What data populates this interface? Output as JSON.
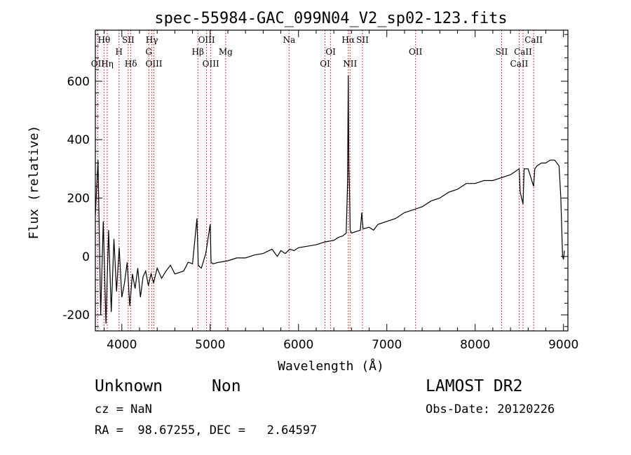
{
  "chart_data": {
    "type": "line",
    "title": "spec-55984-GAC_099N04_V2_sp02-123.fits",
    "xlabel": "Wavelength (Å)",
    "ylabel": "Flux (relative)",
    "xlim": [
      3700,
      9050
    ],
    "ylim": [
      -255,
      775
    ],
    "x_ticks": [
      4000,
      5000,
      6000,
      7000,
      8000,
      9000
    ],
    "y_ticks": [
      -200,
      0,
      200,
      400,
      600
    ],
    "grid": false,
    "line_color": "#000000",
    "marker_color": "#cc0000",
    "spectral_lines": [
      {
        "label": "OII",
        "wavelength": 3727,
        "row": 3
      },
      {
        "label": "Hθ",
        "wavelength": 3798,
        "row": 1
      },
      {
        "label": "Hη",
        "wavelength": 3835,
        "row": 3
      },
      {
        "label": "SII",
        "wavelength": 4072,
        "row": 1
      },
      {
        "label": "H",
        "wavelength": 3968,
        "row": 2
      },
      {
        "label": "Hδ",
        "wavelength": 4102,
        "row": 3
      },
      {
        "label": "Hγ",
        "wavelength": 4340,
        "row": 1
      },
      {
        "label": "G",
        "wavelength": 4305,
        "row": 2
      },
      {
        "label": "OIII",
        "wavelength": 4363,
        "row": 3
      },
      {
        "label": "OIII",
        "wavelength": 4959,
        "row": 1
      },
      {
        "label": "Hβ",
        "wavelength": 4861,
        "row": 2
      },
      {
        "label": "OIII",
        "wavelength": 5007,
        "row": 3
      },
      {
        "label": "Mg",
        "wavelength": 5175,
        "row": 2
      },
      {
        "label": "Na",
        "wavelength": 5893,
        "row": 1
      },
      {
        "label": "OI",
        "wavelength": 6364,
        "row": 2
      },
      {
        "label": "OI",
        "wavelength": 6300,
        "row": 3
      },
      {
        "label": "Hα",
        "wavelength": 6563,
        "row": 1
      },
      {
        "label": "SII",
        "wavelength": 6724,
        "row": 1
      },
      {
        "label": "NII",
        "wavelength": 6583,
        "row": 3
      },
      {
        "label": "OII",
        "wavelength": 7325,
        "row": 2
      },
      {
        "label": "SII",
        "wavelength": 8300,
        "row": 2
      },
      {
        "label": "CaII",
        "wavelength": 8662,
        "row": 1
      },
      {
        "label": "CaII",
        "wavelength": 8542,
        "row": 2
      },
      {
        "label": "CaII",
        "wavelength": 8498,
        "row": 3
      }
    ],
    "spectrum": {
      "name": "flux",
      "x": [
        3700,
        3730,
        3760,
        3790,
        3820,
        3850,
        3880,
        3910,
        3940,
        3970,
        4000,
        4030,
        4060,
        4090,
        4120,
        4150,
        4180,
        4210,
        4240,
        4270,
        4300,
        4330,
        4360,
        4400,
        4450,
        4500,
        4550,
        4600,
        4650,
        4700,
        4750,
        4800,
        4850,
        4865,
        4880,
        4900,
        4950,
        5000,
        5010,
        5030,
        5100,
        5200,
        5300,
        5400,
        5500,
        5600,
        5700,
        5760,
        5800,
        5850,
        5900,
        5950,
        6000,
        6100,
        6200,
        6300,
        6400,
        6450,
        6500,
        6540,
        6555,
        6563,
        6570,
        6578,
        6585,
        6600,
        6650,
        6700,
        6716,
        6731,
        6740,
        6800,
        6850,
        6900,
        7000,
        7100,
        7200,
        7300,
        7400,
        7500,
        7600,
        7700,
        7800,
        7900,
        8000,
        8100,
        8200,
        8300,
        8400,
        8450,
        8498,
        8510,
        8542,
        8555,
        8600,
        8662,
        8675,
        8700,
        8750,
        8800,
        8850,
        8900,
        8950,
        8970,
        8990,
        9000,
        9010
      ],
      "y": [
        140,
        330,
        -200,
        120,
        -230,
        90,
        -190,
        60,
        -120,
        30,
        -140,
        -90,
        -20,
        -170,
        -60,
        -110,
        -40,
        -140,
        -70,
        -50,
        -100,
        -60,
        -90,
        -40,
        -75,
        -50,
        -30,
        -60,
        -55,
        -50,
        -20,
        -25,
        130,
        -30,
        -35,
        -40,
        10,
        110,
        -20,
        -25,
        -20,
        -15,
        -5,
        -5,
        5,
        10,
        25,
        0,
        20,
        10,
        25,
        20,
        30,
        35,
        40,
        50,
        55,
        65,
        70,
        80,
        250,
        620,
        300,
        220,
        90,
        80,
        85,
        90,
        150,
        95,
        95,
        100,
        90,
        110,
        120,
        130,
        150,
        160,
        170,
        190,
        200,
        220,
        230,
        250,
        250,
        260,
        260,
        270,
        280,
        290,
        300,
        220,
        180,
        300,
        300,
        240,
        300,
        310,
        320,
        320,
        330,
        330,
        310,
        200,
        0,
        -10,
        20
      ]
    }
  },
  "footer": {
    "object_class": "Unknown",
    "object_subclass": "Non",
    "survey": "LAMOST DR2",
    "cz": "cz = NaN",
    "obs_date": "Obs-Date: 20120226",
    "coords": "RA =  98.67255, DEC =   2.64597"
  }
}
